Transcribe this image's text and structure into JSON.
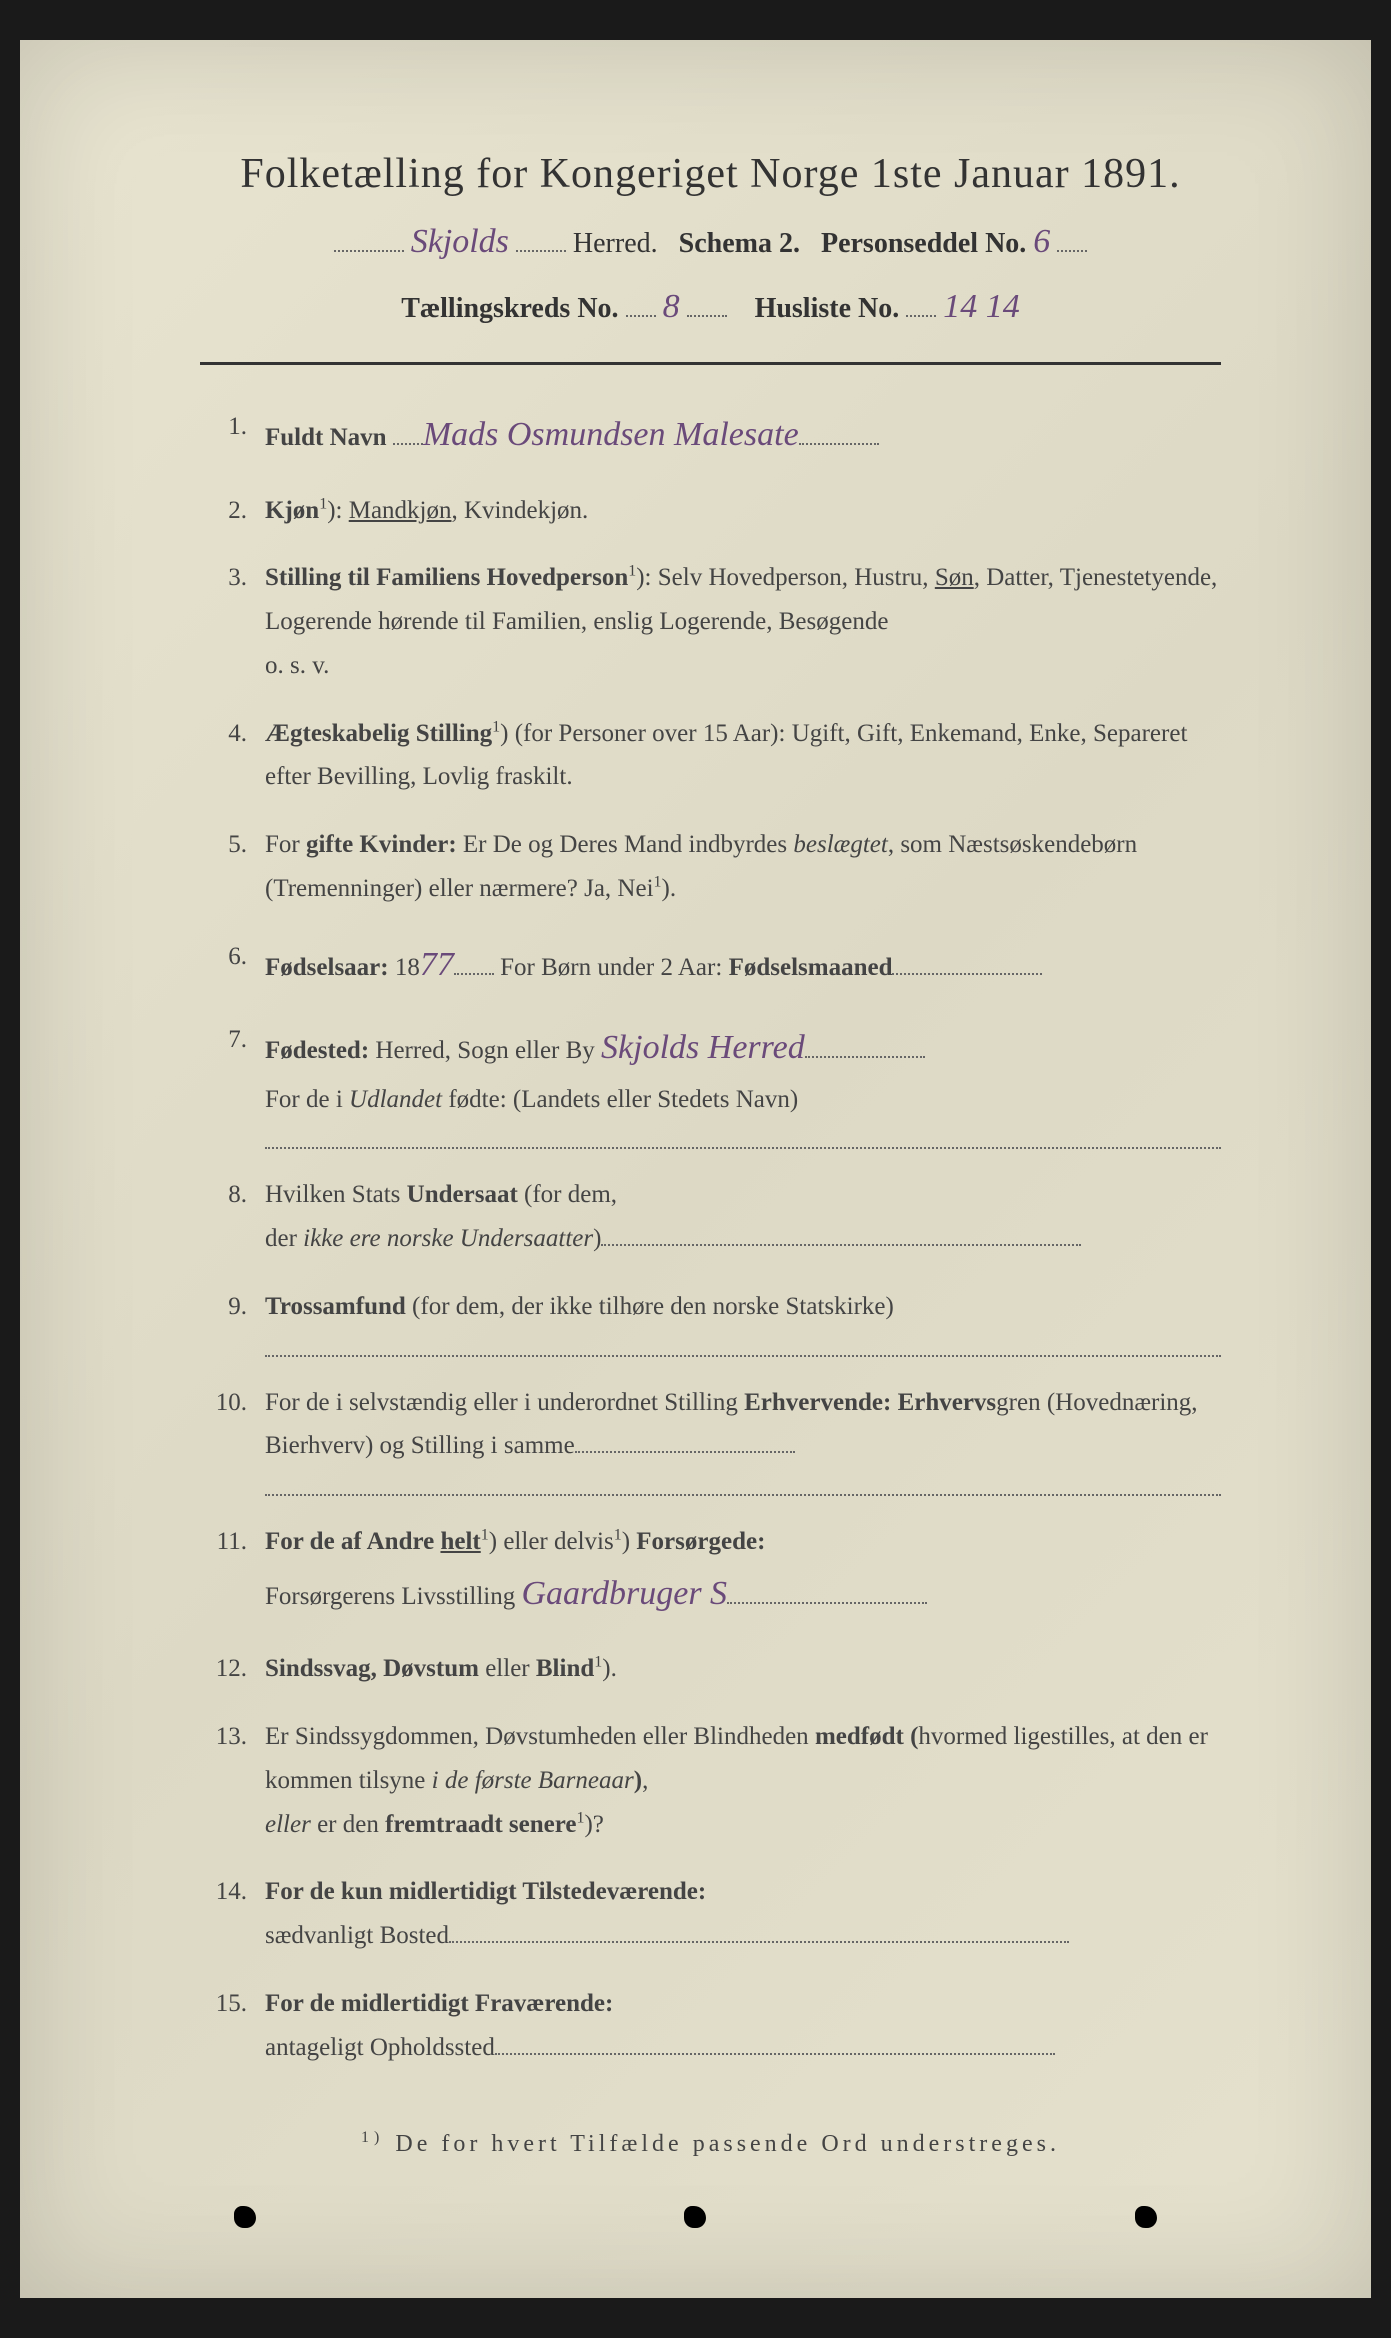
{
  "header": {
    "title": "Folketælling for Kongeriget Norge 1ste Januar 1891.",
    "herred_hw": "Skjolds",
    "herred_label": "Herred.",
    "schema_label": "Schema 2.",
    "personseddel_label": "Personseddel No.",
    "personseddel_no": "6",
    "kreds_label": "Tællingskreds No.",
    "kreds_no": "8",
    "husliste_label": "Husliste No.",
    "husliste_no": "14 14"
  },
  "items": [
    {
      "n": "1.",
      "label": "Fuldt Navn",
      "hw": "Mads Osmundsen Malesate"
    },
    {
      "n": "2.",
      "html": "<span class='bold'>Kjøn</span><span class='sup'>1</span>): <span class='under'>Mandkjøn</span>, Kvindekjøn."
    },
    {
      "n": "3.",
      "html": "<span class='bold'>Stilling til Familiens Hovedperson</span><span class='sup'>1</span>): Selv Hovedperson, Hustru, <span class='under'>Søn</span>, Datter, Tjenestetyende, Logerende hørende til Familien, enslig Logerende, Besøgende<br>o. s. v."
    },
    {
      "n": "4.",
      "html": "<span class='bold'>Ægteskabelig Stilling</span><span class='sup'>1</span>) (for Personer over 15 Aar): Ugift, Gift, Enkemand, Enke, Separeret efter Bevilling, Lovlig fraskilt."
    },
    {
      "n": "5.",
      "html": "For <span class='bold'>gifte Kvinder:</span> Er De og Deres Mand indbyrdes <span class='ital'>beslægtet</span>, som Næstsøskendebørn (Tremenninger) eller nærmere? Ja, Nei<span class='sup'>1</span>)."
    },
    {
      "n": "6.",
      "html": "<span class='bold'>Fødselsaar:</span> 18<span class='hw'>77</span><span class='dots-fill' style='min-width:40px'></span> For Børn under 2 Aar: <span class='bold'>Fødselsmaaned</span><span class='dots-fill' style='min-width:150px'></span>"
    },
    {
      "n": "7.",
      "html": "<span class='bold'>Fødested:</span> Herred, Sogn eller By <span class='hw'>Skjolds Herred</span><span class='dots-fill' style='min-width:120px'></span><br>For de i <span class='ital'>Udlandet</span> fødte: (Landets eller Stedets Navn)<div class='dots-line'></div>"
    },
    {
      "n": "8.",
      "html": "Hvilken Stats <span class='bold'>Undersaat</span> (for dem,<br>der <span class='ital'>ikke ere norske Undersaatter</span>)<span class='dots-fill' style='min-width:480px'></span>"
    },
    {
      "n": "9.",
      "html": "<span class='bold'>Trossamfund</span> (for dem, der ikke tilhøre den norske Statskirke)<div class='dots-line'></div>"
    },
    {
      "n": "10.",
      "html": "For de i selvstændig eller i underordnet Stilling <span class='bold'>Erhvervende: Erhvervs</span>gren (Hovednæring, Bierhverv) og Stilling i samme<span class='dots-fill' style='min-width:220px'></span><div class='dots-line'></div>"
    },
    {
      "n": "11.",
      "html": "<span class='bold'>For de af Andre <span class='under'>helt</span></span><span class='sup'>1</span>) eller delvis<span class='sup'>1</span>) <span class='bold'>Forsørgede:</span><br>Forsørgerens Livsstilling <span class='hw'>Gaardbruger S</span><span class='dots-fill' style='min-width:200px'></span>"
    },
    {
      "n": "12.",
      "html": "<span class='bold'>Sindssvag, Døvstum</span> eller <span class='bold'>Blind</span><span class='sup'>1</span>)."
    },
    {
      "n": "13.",
      "html": "Er Sindssygdommen, Døvstumheden eller Blindheden <span class='bold'>medfødt (</span>hvormed ligestilles, at den er kommen tilsyne <span class='ital'>i de første Barneaar</span><span class='bold'>)</span>,<br><span class='ital'>eller</span> er den <span class='bold'>fremtraadt senere</span><span class='sup'>1</span>)?"
    },
    {
      "n": "14.",
      "html": "<span class='bold'>For de kun midlertidigt Tilstedeværende:</span><br>sædvanligt Bosted<span class='dots-fill' style='min-width:620px'></span>"
    },
    {
      "n": "15.",
      "html": "<span class='bold'>For de midlertidigt Fraværende:</span><br>antageligt Opholdssted<span class='dots-fill' style='min-width:560px'></span>"
    }
  ],
  "footnote_marker": "1)",
  "footnote": "De for hvert Tilfælde passende Ord understreges."
}
